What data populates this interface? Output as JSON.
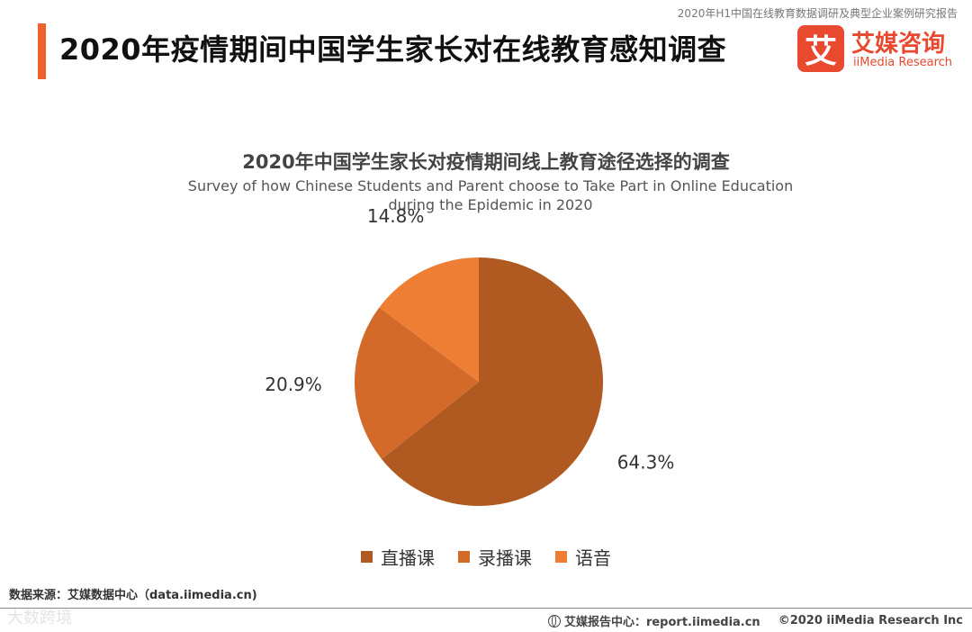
{
  "header": {
    "report_label": "2020年H1中国在线教育数据调研及典型企业案例研究报告",
    "title": "2020年疫情期间中国学生家长对在线教育感知调查",
    "accent_color": "#f0602e"
  },
  "logo": {
    "mark": "艾",
    "name_cn": "艾媒咨询",
    "name_en": "iiMedia Research",
    "color": "#e8492f"
  },
  "chart_data": {
    "type": "pie",
    "title": "2020年中国学生家长对疫情期间线上教育途径选择的调查",
    "subtitle": "Survey of how  Chinese Students and Parent choose to Take Part in  Online Education during the Epidemic in 2020",
    "categories": [
      "直播课",
      "录播课",
      "语音"
    ],
    "values": [
      64.3,
      20.9,
      14.8
    ],
    "labels": [
      "64.3%",
      "20.9%",
      "14.8%"
    ],
    "colors": [
      "#b05a22",
      "#d46a2a",
      "#ee7e33"
    ],
    "legend_position": "bottom"
  },
  "footer": {
    "source": "数据来源：艾媒数据中心（data.iimedia.cn)",
    "watermark": "大数跨境",
    "site": "艾媒报告中心：report.iimedia.cn",
    "copyright": "©2020  iiMedia Research  Inc"
  }
}
